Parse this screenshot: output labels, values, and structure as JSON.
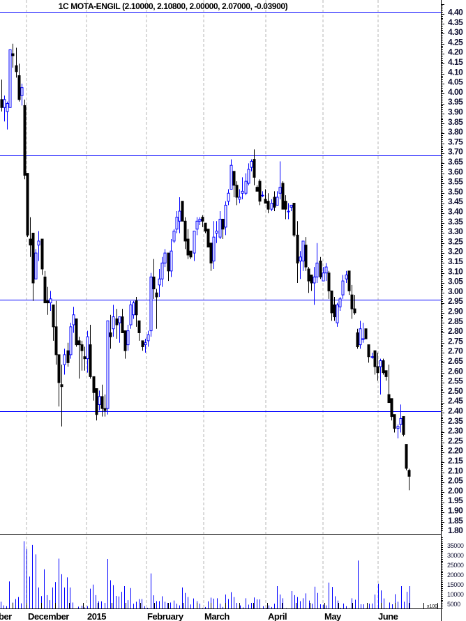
{
  "chart_data": {
    "type": "candlestick",
    "title": "1C MOTA-ENGIL (2.10000, 2.10800, 2.00000, 2.07000, -0.03900)",
    "colors": {
      "up": "#0000ff",
      "down": "#000000",
      "volume": "#0000ff",
      "hline": "#0000ff",
      "grid": "#b4b4b4"
    },
    "price_axis": {
      "range": [
        1.8,
        4.4
      ],
      "tick_labels": [
        "4.40",
        "4.35",
        "4.30",
        "4.25",
        "4.20",
        "4.15",
        "4.10",
        "4.05",
        "4.00",
        "3.95",
        "3.90",
        "3.85",
        "3.80",
        "3.75",
        "3.70",
        "3.65",
        "3.60",
        "3.55",
        "3.50",
        "3.45",
        "3.40",
        "3.35",
        "3.30",
        "3.25",
        "3.20",
        "3.15",
        "3.10",
        "3.05",
        "3.00",
        "2.95",
        "2.90",
        "2.85",
        "2.80",
        "2.75",
        "2.70",
        "2.65",
        "2.60",
        "2.55",
        "2.50",
        "2.45",
        "2.40",
        "2.35",
        "2.30",
        "2.25",
        "2.20",
        "2.15",
        "2.10",
        "2.05",
        "2.00",
        "1.95",
        "1.90",
        "1.85",
        "1.80"
      ]
    },
    "volume_axis": {
      "tick_labels": [
        "35000",
        "30000",
        "25000",
        "20000",
        "15000",
        "10000",
        "5000"
      ],
      "unit": "x100"
    },
    "horizontal_lines": [
      4.4,
      3.68,
      2.955,
      2.395
    ],
    "x_labels": [
      "ber",
      "December",
      "2015",
      "February",
      "March",
      "April",
      "May",
      "June"
    ],
    "ohlc": [
      [
        3.96,
        4.06,
        3.9,
        3.92
      ],
      [
        3.92,
        3.98,
        3.85,
        3.96
      ],
      [
        3.9,
        3.95,
        3.81,
        3.94
      ],
      [
        3.92,
        4.21,
        3.92,
        4.21
      ],
      [
        4.19,
        4.24,
        4.12,
        4.18
      ],
      [
        4.13,
        4.22,
        4.07,
        4.1
      ],
      [
        4.08,
        4.14,
        3.95,
        3.96
      ],
      [
        3.98,
        4.04,
        3.93,
        4.02
      ],
      [
        3.93,
        3.96,
        3.56,
        3.58
      ],
      [
        3.59,
        3.59,
        3.27,
        3.28
      ],
      [
        3.26,
        3.37,
        3.17,
        3.23
      ],
      [
        3.29,
        3.29,
        2.95,
        3.04
      ],
      [
        3.06,
        3.21,
        3.06,
        3.19
      ],
      [
        3.23,
        3.3,
        3.15,
        3.25
      ],
      [
        3.26,
        3.26,
        3.08,
        3.11
      ],
      [
        3.07,
        3.1,
        2.94,
        2.94
      ],
      [
        2.95,
        3.02,
        2.88,
        2.94
      ],
      [
        2.94,
        3.0,
        2.9,
        2.96
      ],
      [
        2.93,
        2.93,
        2.75,
        2.82
      ],
      [
        2.82,
        2.95,
        2.63,
        2.68
      ],
      [
        2.68,
        2.68,
        2.42,
        2.54
      ],
      [
        2.53,
        2.63,
        2.32,
        2.52
      ],
      [
        2.63,
        2.71,
        2.58,
        2.68
      ],
      [
        2.7,
        2.74,
        2.62,
        2.64
      ],
      [
        2.68,
        2.84,
        2.66,
        2.82
      ],
      [
        2.83,
        2.92,
        2.79,
        2.88
      ],
      [
        2.86,
        2.86,
        2.72,
        2.73
      ],
      [
        2.75,
        2.77,
        2.56,
        2.73
      ],
      [
        2.73,
        2.75,
        2.6,
        2.7
      ],
      [
        2.67,
        2.72,
        2.6,
        2.66
      ],
      [
        2.66,
        2.8,
        2.59,
        2.77
      ],
      [
        2.73,
        2.83,
        2.56,
        2.57
      ],
      [
        2.57,
        2.57,
        2.45,
        2.49
      ],
      [
        2.51,
        2.51,
        2.35,
        2.38
      ],
      [
        2.43,
        2.5,
        2.4,
        2.47
      ],
      [
        2.47,
        2.53,
        2.37,
        2.41
      ],
      [
        2.41,
        2.48,
        2.37,
        2.4
      ],
      [
        2.41,
        2.85,
        2.38,
        2.85
      ],
      [
        2.79,
        2.88,
        2.71,
        2.77
      ],
      [
        2.81,
        2.93,
        2.77,
        2.87
      ],
      [
        2.86,
        2.91,
        2.76,
        2.83
      ],
      [
        2.84,
        2.87,
        2.74,
        2.87
      ],
      [
        2.87,
        2.91,
        2.79,
        2.79
      ],
      [
        2.8,
        2.8,
        2.66,
        2.7
      ],
      [
        2.73,
        2.83,
        2.7,
        2.8
      ],
      [
        2.83,
        2.95,
        2.81,
        2.93
      ],
      [
        2.88,
        2.95,
        2.86,
        2.94
      ],
      [
        2.95,
        2.97,
        2.82,
        2.88
      ],
      [
        2.85,
        2.85,
        2.75,
        2.79
      ],
      [
        2.75,
        2.75,
        2.7,
        2.72
      ],
      [
        2.73,
        2.76,
        2.69,
        2.74
      ],
      [
        2.75,
        2.8,
        2.72,
        2.78
      ],
      [
        2.8,
        3.09,
        2.77,
        3.07
      ],
      [
        3.07,
        3.16,
        2.96,
        3.01
      ],
      [
        2.99,
        3.01,
        2.81,
        2.97
      ],
      [
        3.03,
        3.11,
        2.97,
        3.06
      ],
      [
        3.06,
        3.17,
        3.02,
        3.14
      ],
      [
        3.14,
        3.21,
        3.12,
        3.19
      ],
      [
        3.19,
        3.19,
        3.05,
        3.1
      ],
      [
        3.1,
        3.26,
        3.07,
        3.2
      ],
      [
        3.25,
        3.31,
        3.24,
        3.3
      ],
      [
        3.31,
        3.4,
        3.29,
        3.37
      ],
      [
        3.35,
        3.47,
        3.29,
        3.4
      ],
      [
        3.45,
        3.45,
        3.35,
        3.35
      ],
      [
        3.35,
        3.37,
        3.21,
        3.25
      ],
      [
        3.26,
        3.31,
        3.16,
        3.18
      ],
      [
        3.2,
        3.2,
        3.16,
        3.17
      ],
      [
        3.19,
        3.3,
        3.15,
        3.3
      ],
      [
        3.31,
        3.37,
        3.28,
        3.35
      ],
      [
        3.35,
        3.37,
        3.33,
        3.36
      ],
      [
        3.37,
        3.38,
        3.32,
        3.35
      ],
      [
        3.34,
        3.34,
        3.29,
        3.3
      ],
      [
        3.31,
        3.31,
        3.22,
        3.22
      ],
      [
        3.24,
        3.24,
        3.1,
        3.14
      ],
      [
        3.15,
        3.35,
        3.11,
        3.27
      ],
      [
        3.29,
        3.35,
        3.24,
        3.3
      ],
      [
        3.27,
        3.4,
        3.26,
        3.36
      ],
      [
        3.36,
        3.36,
        3.26,
        3.31
      ],
      [
        3.32,
        3.45,
        3.28,
        3.43
      ],
      [
        3.45,
        3.51,
        3.43,
        3.49
      ],
      [
        3.51,
        3.66,
        3.51,
        3.63
      ],
      [
        3.6,
        3.6,
        3.47,
        3.53
      ],
      [
        3.53,
        3.55,
        3.43,
        3.47
      ],
      [
        3.46,
        3.51,
        3.44,
        3.47
      ],
      [
        3.49,
        3.57,
        3.46,
        3.5
      ],
      [
        3.49,
        3.59,
        3.48,
        3.55
      ],
      [
        3.54,
        3.64,
        3.53,
        3.61
      ],
      [
        3.62,
        3.66,
        3.6,
        3.65
      ],
      [
        3.66,
        3.71,
        3.53,
        3.57
      ],
      [
        3.52,
        3.53,
        3.5,
        3.5
      ],
      [
        3.55,
        3.56,
        3.43,
        3.45
      ],
      [
        3.48,
        3.5,
        3.47,
        3.48
      ],
      [
        3.46,
        3.51,
        3.44,
        3.44
      ],
      [
        3.45,
        3.49,
        3.39,
        3.41
      ],
      [
        3.41,
        3.46,
        3.4,
        3.44
      ],
      [
        3.47,
        3.5,
        3.4,
        3.42
      ],
      [
        3.43,
        3.5,
        3.43,
        3.47
      ],
      [
        3.49,
        3.65,
        3.46,
        3.52
      ],
      [
        3.54,
        3.55,
        3.41,
        3.41
      ],
      [
        3.45,
        3.48,
        3.36,
        3.41
      ],
      [
        3.4,
        3.44,
        3.36,
        3.4
      ],
      [
        3.42,
        3.43,
        3.4,
        3.43
      ],
      [
        3.44,
        3.44,
        3.27,
        3.28
      ],
      [
        3.28,
        3.35,
        3.04,
        3.14
      ],
      [
        3.15,
        3.2,
        3.06,
        3.17
      ],
      [
        3.15,
        3.25,
        3.1,
        3.25
      ],
      [
        3.23,
        3.27,
        3.1,
        3.12
      ],
      [
        3.11,
        3.12,
        2.99,
        3.05
      ],
      [
        3.08,
        3.08,
        3.0,
        3.04
      ],
      [
        3.04,
        3.12,
        2.93,
        3.07
      ],
      [
        3.07,
        3.24,
        3.04,
        3.14
      ],
      [
        3.15,
        3.17,
        3.06,
        3.07
      ],
      [
        3.05,
        3.12,
        3.05,
        3.09
      ],
      [
        3.09,
        3.14,
        3.05,
        3.12
      ],
      [
        3.09,
        3.1,
        2.96,
        3.0
      ],
      [
        3.0,
        3.0,
        2.85,
        2.89
      ],
      [
        2.93,
        2.97,
        2.85,
        2.87
      ],
      [
        2.84,
        2.94,
        2.82,
        2.93
      ],
      [
        2.92,
        2.97,
        2.9,
        2.96
      ],
      [
        2.98,
        3.08,
        2.96,
        3.05
      ],
      [
        3.06,
        3.1,
        3.04,
        3.08
      ],
      [
        3.1,
        3.1,
        2.98,
        3.0
      ],
      [
        2.98,
        3.03,
        2.86,
        2.91
      ],
      [
        2.91,
        2.98,
        2.88,
        2.89
      ],
      [
        2.79,
        2.81,
        2.71,
        2.72
      ],
      [
        2.73,
        2.85,
        2.71,
        2.81
      ],
      [
        2.76,
        2.84,
        2.74,
        2.76
      ],
      [
        2.81,
        2.81,
        2.76,
        2.76
      ],
      [
        2.73,
        2.73,
        2.64,
        2.67
      ],
      [
        2.67,
        2.69,
        2.66,
        2.67
      ],
      [
        2.7,
        2.7,
        2.58,
        2.62
      ],
      [
        2.62,
        2.69,
        2.55,
        2.59
      ],
      [
        2.62,
        2.66,
        2.48,
        2.65
      ],
      [
        2.65,
        2.66,
        2.58,
        2.59
      ],
      [
        2.6,
        2.6,
        2.55,
        2.57
      ],
      [
        2.48,
        2.63,
        2.44,
        2.44
      ],
      [
        2.46,
        2.46,
        2.35,
        2.37
      ],
      [
        2.38,
        2.38,
        2.29,
        2.31
      ],
      [
        2.31,
        2.33,
        2.26,
        2.32
      ],
      [
        2.33,
        2.43,
        2.29,
        2.36
      ],
      [
        2.37,
        2.37,
        2.27,
        2.28
      ],
      [
        2.23,
        2.23,
        2.1,
        2.11
      ],
      [
        2.1,
        2.108,
        2.0,
        2.07
      ]
    ],
    "volume": [
      6300,
      4400,
      4000,
      16700,
      5900,
      7700,
      8700,
      5500,
      37300,
      33300,
      19200,
      35400,
      30600,
      13600,
      9200,
      22900,
      9700,
      7100,
      13600,
      16400,
      28400,
      20400,
      13600,
      18800,
      13600,
      5900,
      1400,
      3800,
      4300,
      3400,
      4000,
      13000,
      15100,
      9700,
      6500,
      6500,
      5700,
      28200,
      17300,
      14800,
      9300,
      9000,
      11400,
      14300,
      7100,
      13300,
      5300,
      6300,
      7700,
      7700,
      4000,
      3200,
      20800,
      9600,
      6600,
      6600,
      9100,
      6300,
      5700,
      5900,
      6900,
      5300,
      4400,
      13600,
      10800,
      8700,
      4900,
      8000,
      6600,
      5300,
      3100,
      3600,
      6500,
      8400,
      7900,
      8100,
      5300,
      3600,
      10000,
      7700,
      11200,
      8700,
      5700,
      4400,
      3400,
      8100,
      4800,
      5700,
      8500,
      7500,
      7500,
      4000,
      3200,
      4400,
      3600,
      5300,
      14300,
      10000,
      8100,
      3000,
      1600,
      11800,
      9700,
      8700,
      6600,
      8100,
      10600,
      6900,
      5300,
      14000,
      10800,
      5000,
      4800,
      4400,
      16100,
      13900,
      9100,
      6900,
      3200,
      5400,
      4000,
      3000,
      8100,
      7300,
      27400,
      5000,
      5000,
      3000,
      5300,
      5400,
      10000,
      15500,
      12100,
      8000,
      3000,
      5900,
      5000,
      10200,
      6300,
      14300,
      6300,
      11400,
      14300
    ],
    "grid": {
      "vertical_dashed": true,
      "horizontal": false
    }
  }
}
